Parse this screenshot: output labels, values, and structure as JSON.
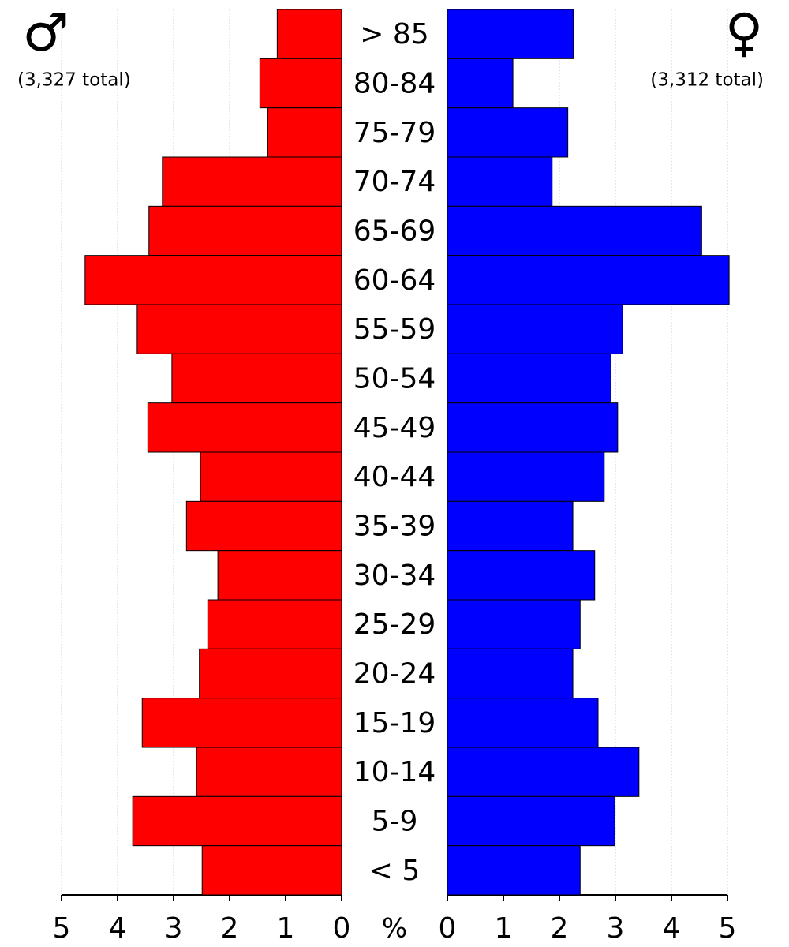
{
  "chart_data": {
    "type": "population-pyramid",
    "unit_label": "%",
    "categories": [
      "> 85",
      "80-84",
      "75-79",
      "70-74",
      "65-69",
      "60-64",
      "55-59",
      "50-54",
      "45-49",
      "40-44",
      "35-39",
      "30-34",
      "25-29",
      "20-24",
      "15-19",
      "10-14",
      "5-9",
      "< 5"
    ],
    "series": [
      {
        "name": "♂",
        "subtitle": "(3,327 total)",
        "color": "#ff0000",
        "side": "left",
        "values": [
          1.15,
          1.46,
          1.32,
          3.2,
          3.44,
          4.58,
          3.65,
          3.03,
          3.46,
          2.52,
          2.77,
          2.21,
          2.39,
          2.54,
          3.56,
          2.59,
          3.73,
          2.49
        ]
      },
      {
        "name": "♀",
        "subtitle": "(3,312 total)",
        "color": "#0000ff",
        "side": "right",
        "values": [
          2.25,
          1.17,
          2.15,
          1.87,
          4.54,
          5.03,
          3.13,
          2.92,
          3.04,
          2.8,
          2.24,
          2.63,
          2.37,
          2.24,
          2.69,
          3.42,
          2.99,
          2.37
        ]
      }
    ],
    "xlim": [
      0,
      5
    ],
    "xticks": [
      0,
      1,
      2,
      3,
      4,
      5
    ],
    "grid": true
  }
}
